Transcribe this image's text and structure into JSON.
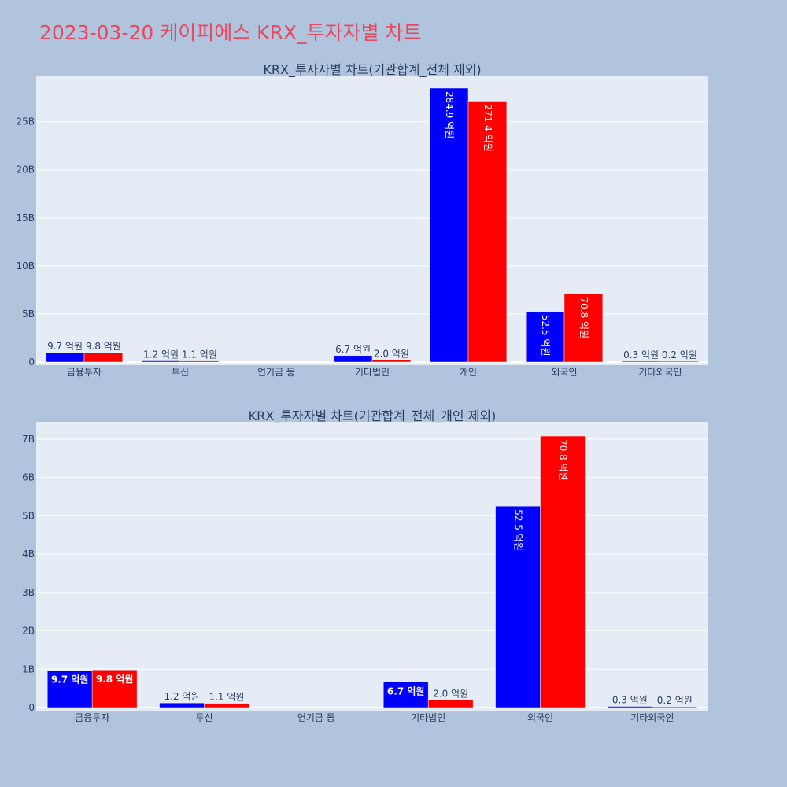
{
  "title": "2023-03-20 케이피에스 KRX_투자자별 차트",
  "colors": {
    "series1": "#0000ff",
    "series2": "#ff0000",
    "plot_bg": "#e5ecf6",
    "page_bg": "#b0c4de",
    "title": "#e8495c"
  },
  "chart_data": [
    {
      "type": "bar",
      "title": "KRX_투자자별 차트(기관합계_전체 제외)",
      "categories": [
        "금융투자",
        "투신",
        "연기금 등",
        "기타법인",
        "개인",
        "외국인",
        "기타외국인"
      ],
      "ylim": [
        0,
        29.8
      ],
      "yticks": [
        0,
        5,
        10,
        15,
        20,
        25
      ],
      "ytick_labels": [
        "0",
        "5B",
        "10B",
        "15B",
        "20B",
        "25B"
      ],
      "grid": true,
      "series": [
        {
          "color": "#0000ff",
          "values": [
            0.97,
            0.12,
            0.0,
            0.67,
            28.49,
            5.25,
            0.03
          ],
          "labels": [
            "9.7 억원",
            "1.2 억원",
            "",
            "6.7 억원",
            "284.9 억원",
            "52.5 억원",
            "0.3 억원"
          ]
        },
        {
          "color": "#ff0000",
          "values": [
            0.98,
            0.11,
            0.0,
            0.2,
            27.14,
            7.08,
            0.02
          ],
          "labels": [
            "9.8 억원",
            "1.1 억원",
            "",
            "2.0 억원",
            "271.4 억원",
            "70.8 억원",
            "0.2 억원"
          ]
        }
      ]
    },
    {
      "type": "bar",
      "title": "KRX_투자자별 차트(기관합계_전체_개인 제외)",
      "categories": [
        "금융투자",
        "투신",
        "연기금 등",
        "기타법인",
        "외국인",
        "기타외국인"
      ],
      "ylim": [
        0,
        7.45
      ],
      "yticks": [
        0,
        1,
        2,
        3,
        4,
        5,
        6,
        7
      ],
      "ytick_labels": [
        "0",
        "1B",
        "2B",
        "3B",
        "4B",
        "5B",
        "6B",
        "7B"
      ],
      "grid": true,
      "series": [
        {
          "color": "#0000ff",
          "values": [
            0.97,
            0.12,
            0.0,
            0.67,
            5.25,
            0.03
          ],
          "labels": [
            "9.7 억원",
            "1.2 억원",
            "",
            "6.7 억원",
            "52.5 억원",
            "0.3 억원"
          ]
        },
        {
          "color": "#ff0000",
          "values": [
            0.98,
            0.11,
            0.0,
            0.2,
            7.08,
            0.02
          ],
          "labels": [
            "9.8 억원",
            "1.1 억원",
            "",
            "2.0 억원",
            "70.8 억원",
            "0.2 억원"
          ]
        }
      ]
    }
  ]
}
